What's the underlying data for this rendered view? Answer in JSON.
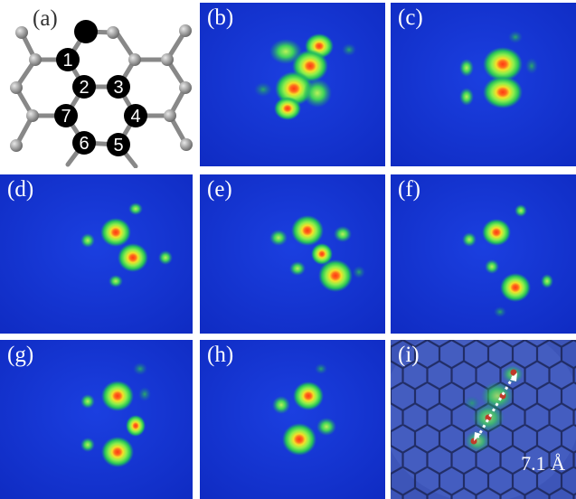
{
  "panels": {
    "a": {
      "label": "(a)"
    },
    "b": {
      "label": "(b)"
    },
    "c": {
      "label": "(c)"
    },
    "d": {
      "label": "(d)"
    },
    "e": {
      "label": "(e)"
    },
    "f": {
      "label": "(f)"
    },
    "g": {
      "label": "(g)"
    },
    "h": {
      "label": "(h)"
    },
    "i": {
      "label": "(i)"
    }
  },
  "atoms": {
    "n1": "1",
    "n2": "2",
    "n3": "3",
    "n4": "4",
    "n5": "5",
    "n6": "6",
    "n7": "7"
  },
  "scale": {
    "text": "7.1 Å"
  },
  "colors": {
    "background": "#1436d6",
    "glow": "#22c95a",
    "core": "#d2452a",
    "atom_dark": "#000000",
    "atom_grey": "#9a9a9a"
  }
}
